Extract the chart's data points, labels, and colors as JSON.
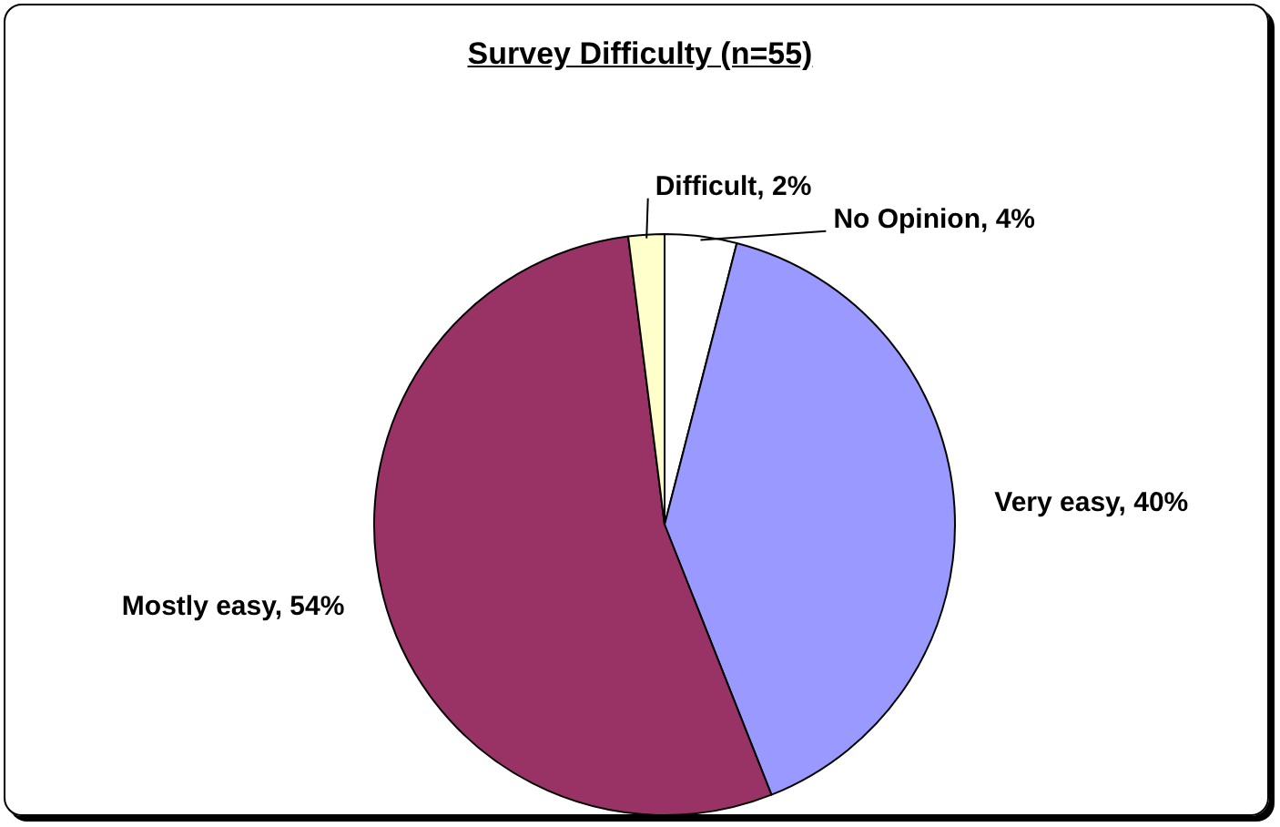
{
  "chart_data": {
    "type": "pie",
    "title": "Survey Difficulty (n=55)",
    "categories": [
      "No Opinion",
      "Very easy",
      "Mostly easy",
      "Difficult"
    ],
    "values": [
      4,
      40,
      54,
      2
    ],
    "value_labels": [
      "4%",
      "40%",
      "54%",
      "2%"
    ],
    "colors": [
      "#ffffff",
      "#9999ff",
      "#993366",
      "#ffffcc"
    ],
    "legend": false
  }
}
